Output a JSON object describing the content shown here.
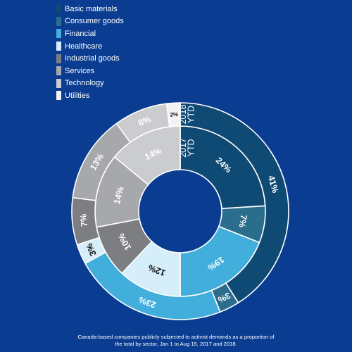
{
  "chart_data": {
    "type": "pie",
    "categories": [
      "Basic materials",
      "Consumer goods",
      "Financial",
      "Healthcare",
      "Industrial goods",
      "Services",
      "Technology",
      "Utilities"
    ],
    "colors": [
      "#0e4a73",
      "#2a6d8c",
      "#42aedc",
      "#d6eefa",
      "#7c7e82",
      "#a6a8ab",
      "#cbcccf",
      "#f2f2f2"
    ],
    "series": [
      {
        "name": "2017 YTD",
        "values": [
          24,
          7,
          19,
          12,
          10,
          14,
          14,
          0
        ]
      },
      {
        "name": "2018 YTD",
        "values": [
          41,
          3,
          23,
          3,
          7,
          13,
          8,
          2
        ]
      }
    ],
    "legend_position": "top-left"
  },
  "caption": {
    "line1": "Canada-based companies publicly subjected to activist demands as a proportion of",
    "line2": "the total by sector, Jan 1 to Aug 15, 2017 and 2018."
  }
}
